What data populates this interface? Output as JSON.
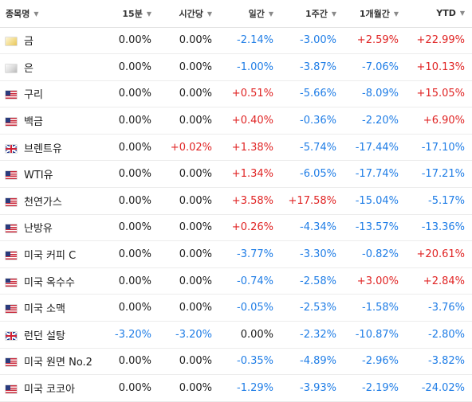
{
  "colors": {
    "positive": "#e02424",
    "negative": "#1f7de6",
    "neutral": "#1a1a1a"
  },
  "columns": [
    {
      "label": "종목명",
      "sortable": true
    },
    {
      "label": "15분",
      "sortable": true
    },
    {
      "label": "시간당",
      "sortable": true
    },
    {
      "label": "일간",
      "sortable": true
    },
    {
      "label": "1주간",
      "sortable": true
    },
    {
      "label": "1개월간",
      "sortable": true
    },
    {
      "label": "YTD",
      "sortable": true
    }
  ],
  "rows": [
    {
      "name": "금",
      "icon": "gold-icon",
      "values": [
        "0.00%",
        "0.00%",
        "-2.14%",
        "-3.00%",
        "+2.59%",
        "+22.99%"
      ]
    },
    {
      "name": "은",
      "icon": "silver-icon",
      "values": [
        "0.00%",
        "0.00%",
        "-1.00%",
        "-3.87%",
        "-7.06%",
        "+10.13%"
      ]
    },
    {
      "name": "구리",
      "icon": "us-flag-icon",
      "values": [
        "0.00%",
        "0.00%",
        "+0.51%",
        "-5.66%",
        "-8.09%",
        "+15.05%"
      ]
    },
    {
      "name": "백금",
      "icon": "us-flag-icon",
      "values": [
        "0.00%",
        "0.00%",
        "+0.40%",
        "-0.36%",
        "-2.20%",
        "+6.90%"
      ]
    },
    {
      "name": "브렌트유",
      "icon": "uk-flag-icon",
      "values": [
        "0.00%",
        "+0.02%",
        "+1.38%",
        "-5.74%",
        "-17.44%",
        "-17.10%"
      ]
    },
    {
      "name": "WTI유",
      "icon": "us-flag-icon",
      "values": [
        "0.00%",
        "0.00%",
        "+1.34%",
        "-6.05%",
        "-17.74%",
        "-17.21%"
      ]
    },
    {
      "name": "천연가스",
      "icon": "us-flag-icon",
      "values": [
        "0.00%",
        "0.00%",
        "+3.58%",
        "+17.58%",
        "-15.04%",
        "-5.17%"
      ]
    },
    {
      "name": "난방유",
      "icon": "us-flag-icon",
      "values": [
        "0.00%",
        "0.00%",
        "+0.26%",
        "-4.34%",
        "-13.57%",
        "-13.36%"
      ]
    },
    {
      "name": "미국 커피 C",
      "icon": "us-flag-icon",
      "values": [
        "0.00%",
        "0.00%",
        "-3.77%",
        "-3.30%",
        "-0.82%",
        "+20.61%"
      ]
    },
    {
      "name": "미국 옥수수",
      "icon": "us-flag-icon",
      "values": [
        "0.00%",
        "0.00%",
        "-0.74%",
        "-2.58%",
        "+3.00%",
        "+2.84%"
      ]
    },
    {
      "name": "미국 소맥",
      "icon": "us-flag-icon",
      "values": [
        "0.00%",
        "0.00%",
        "-0.05%",
        "-2.53%",
        "-1.58%",
        "-3.76%"
      ]
    },
    {
      "name": "런던 설탕",
      "icon": "uk-flag-icon",
      "values": [
        "-3.20%",
        "-3.20%",
        "0.00%",
        "-2.32%",
        "-10.87%",
        "-2.80%"
      ]
    },
    {
      "name": "미국 원면 No.2",
      "icon": "us-flag-icon",
      "values": [
        "0.00%",
        "0.00%",
        "-0.35%",
        "-4.89%",
        "-2.96%",
        "-3.82%"
      ]
    },
    {
      "name": "미국 코코아",
      "icon": "us-flag-icon",
      "values": [
        "0.00%",
        "0.00%",
        "-1.29%",
        "-3.93%",
        "-2.19%",
        "-24.02%"
      ]
    }
  ]
}
